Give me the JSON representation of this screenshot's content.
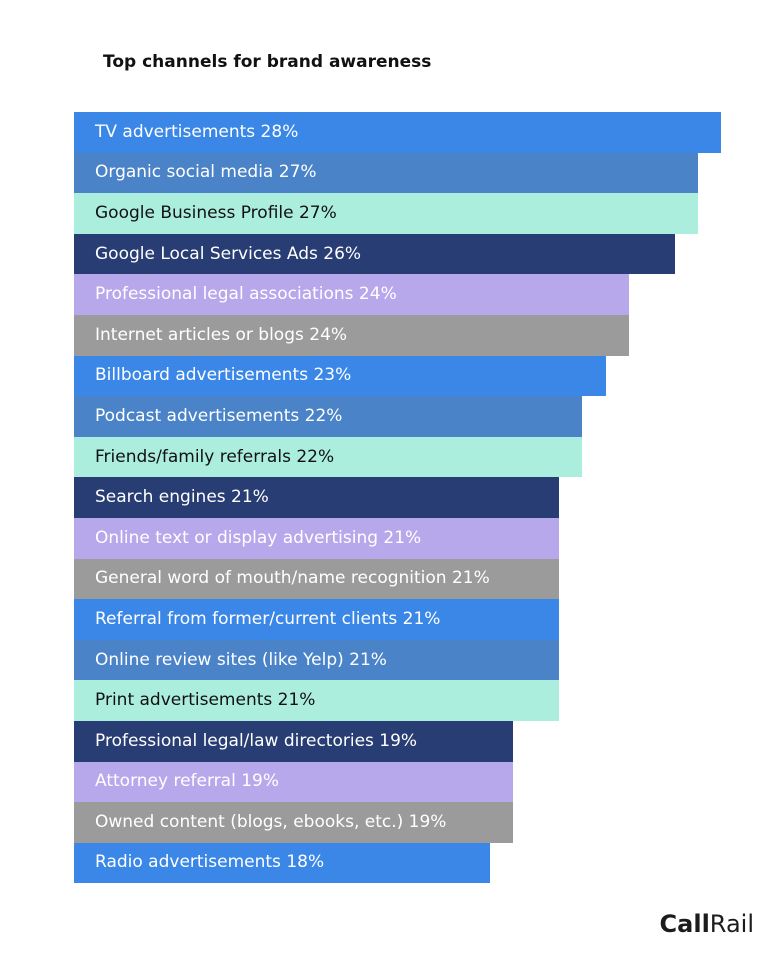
{
  "chart_data": {
    "type": "bar",
    "orientation": "horizontal",
    "title": "Top channels for brand awareness",
    "categories": [
      "TV advertisements",
      "Organic social media",
      "Google Business Profile",
      "Google Local Services Ads",
      "Professional legal associations",
      "Internet articles or blogs",
      "Billboard advertisements",
      "Podcast advertisements",
      "Friends/family referrals",
      "Search engines",
      "Online text or display advertising",
      "General word of mouth/name recognition",
      "Referral from former/current clients",
      "Online review sites (like Yelp)",
      "Print advertisements",
      "Professional legal/law directories",
      "Attorney referral",
      "Owned content (blogs, ebooks, etc.)",
      "Radio advertisements"
    ],
    "values": [
      28,
      27,
      27,
      26,
      24,
      24,
      23,
      22,
      22,
      21,
      21,
      21,
      21,
      21,
      21,
      19,
      19,
      19,
      18
    ],
    "labels": [
      "TV advertisements 28%",
      "Organic social media  27%",
      "Google Business Profile 27%",
      "Google Local Services Ads 26%",
      "Professional legal associations 24%",
      "Internet articles or blogs 24%",
      "Billboard advertisements 23%",
      "Podcast advertisements 22%",
      "Friends/family referrals 22%",
      "Search engines 21%",
      "Online text or display advertising 21%",
      "General word of mouth/name recognition 21%",
      "Referral from former/current clients 21%",
      "Online review sites (like Yelp) 21%",
      "Print advertisements 21%",
      "Professional legal/law directories 19%",
      "Attorney referral 19%",
      "Owned content (blogs, ebooks, etc.) 19%",
      "Radio advertisements 18%"
    ],
    "unit": "%",
    "xlim": [
      0,
      28
    ],
    "grid": false,
    "legend": "none",
    "bar_colors": [
      "#3a87e8",
      "#4a83c8",
      "#abeedd",
      "#283d74",
      "#b7a8ec",
      "#9b9b9b"
    ],
    "label_colors": [
      "#ffffff",
      "#ffffff",
      "#111111",
      "#ffffff",
      "#ffffff",
      "#ffffff"
    ]
  },
  "brand": {
    "part1": "Call",
    "part2": "Rail"
  }
}
